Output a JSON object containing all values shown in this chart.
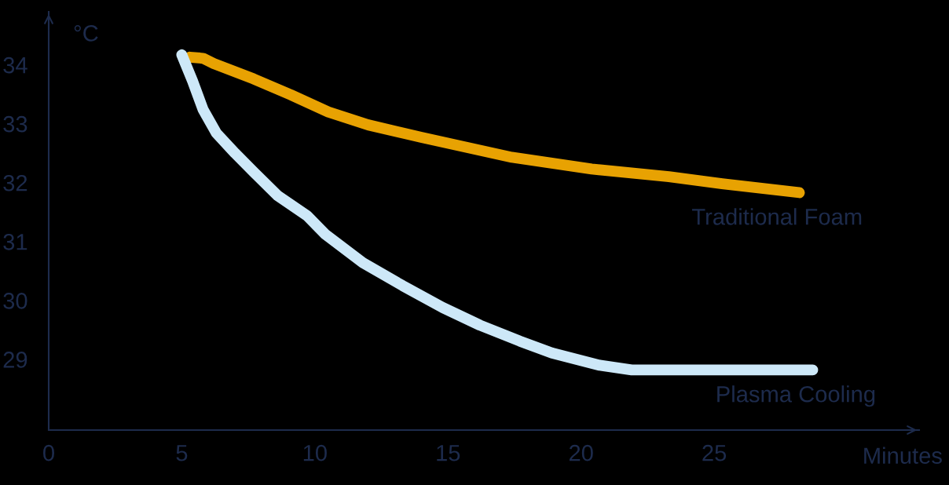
{
  "chart_data": {
    "type": "line",
    "xlabel": "Minutes",
    "ylabel": "°C",
    "series": [
      {
        "name": "Traditional Foam",
        "color": "#e8a202",
        "x": [
          5.3,
          5.8,
          6.2,
          7.7,
          9.1,
          10.5,
          12.0,
          14.0,
          15.9,
          17.4,
          20.4,
          23.3,
          25.3,
          28.2
        ],
        "values": [
          34.13,
          34.11,
          34.02,
          33.76,
          33.49,
          33.2,
          32.98,
          32.77,
          32.58,
          32.43,
          32.23,
          32.1,
          31.98,
          31.83
        ]
      },
      {
        "name": "Plasma Cooling",
        "color": "#cde8f8",
        "x": [
          5.0,
          5.4,
          5.8,
          6.3,
          7.0,
          7.7,
          8.6,
          9.7,
          10.4,
          11.8,
          13.3,
          14.8,
          16.2,
          17.7,
          18.9,
          20.7,
          21.9,
          28.7
        ],
        "values": [
          34.17,
          33.73,
          33.24,
          32.84,
          32.5,
          32.18,
          31.78,
          31.44,
          31.12,
          30.64,
          30.25,
          29.88,
          29.58,
          29.31,
          29.11,
          28.9,
          28.82,
          28.82
        ]
      }
    ],
    "xlim": [
      0,
      32.7
    ],
    "ylim": [
      27.8,
      34.9
    ],
    "xticks": [
      0,
      5,
      10,
      15,
      20,
      25
    ],
    "yticks": [
      29,
      30,
      31,
      32,
      33,
      34
    ],
    "grid": false,
    "legend": false,
    "marker": "none",
    "line_style": "solid"
  }
}
